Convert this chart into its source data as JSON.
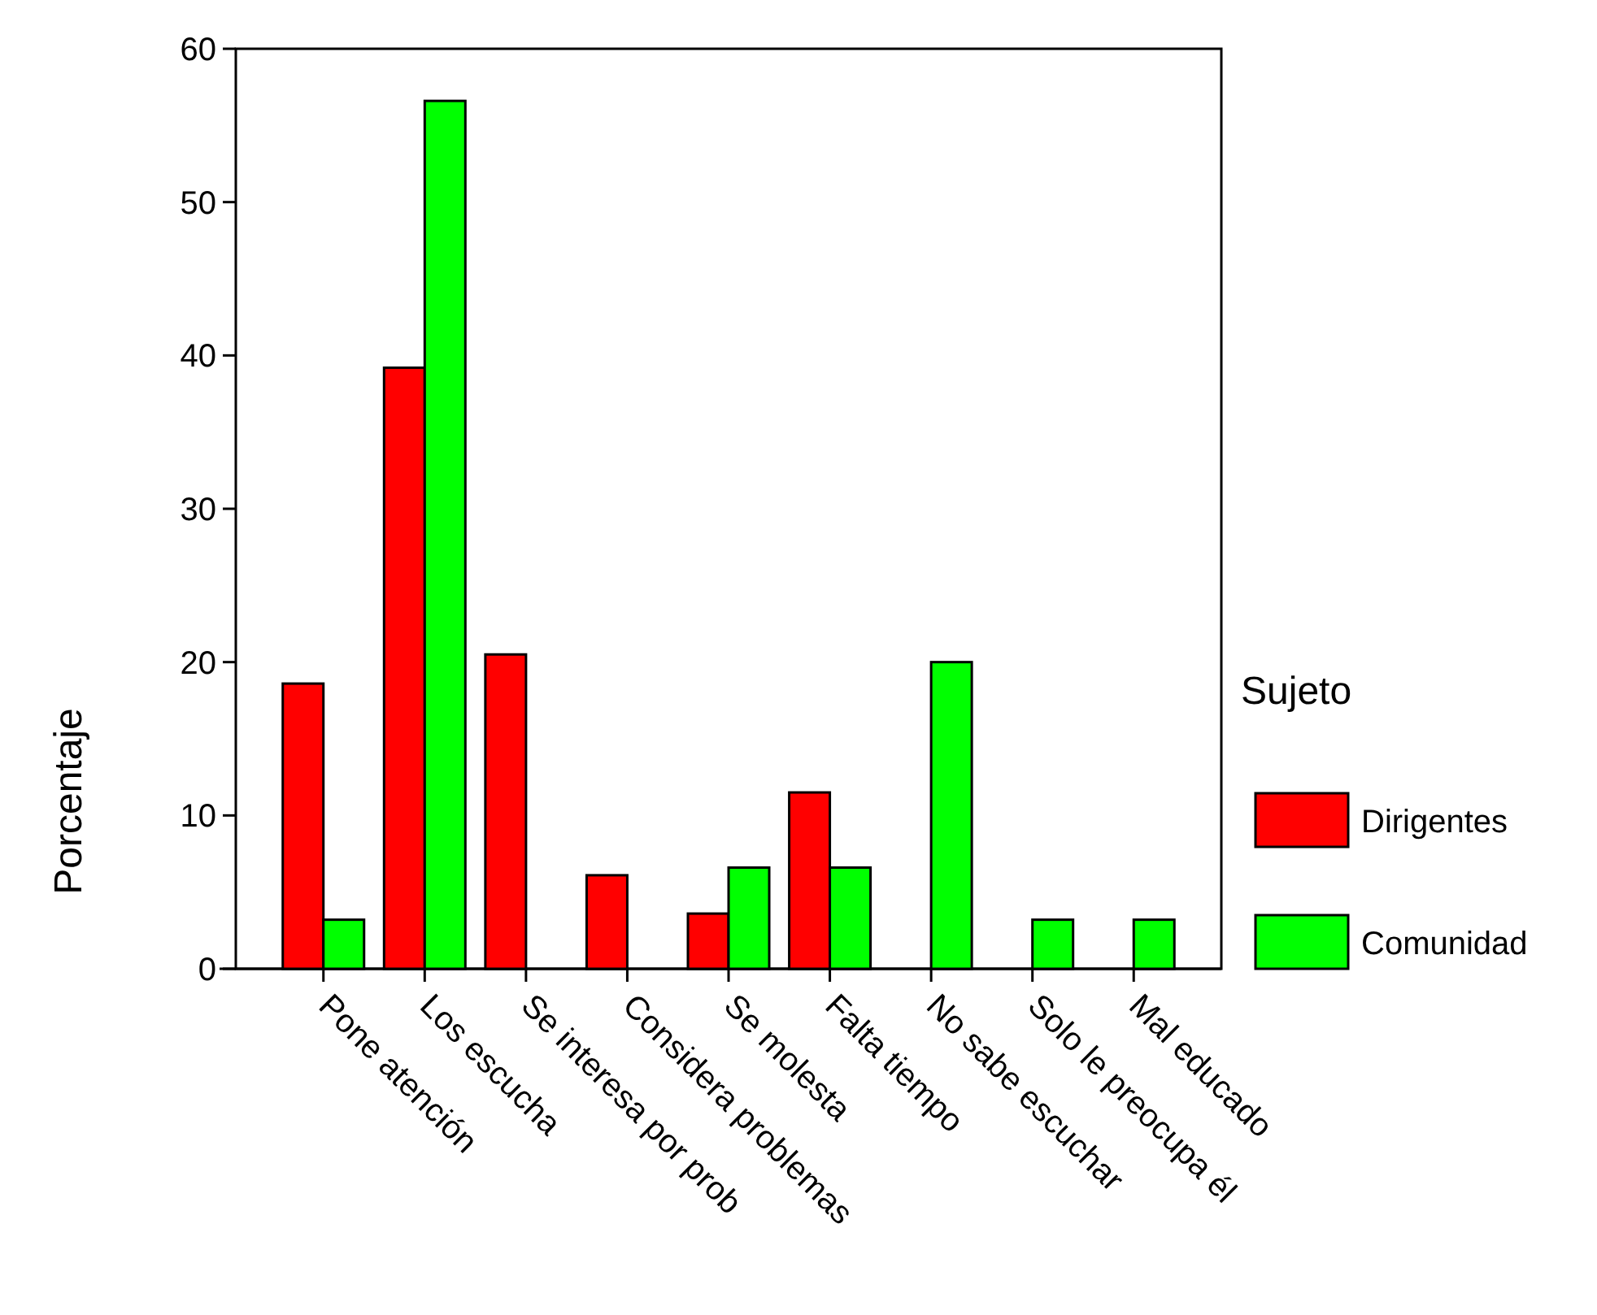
{
  "chart_data": {
    "type": "bar",
    "ylabel": "Porcentaje",
    "legend_title": "Sujeto",
    "legend": "right",
    "categories": [
      "Pone atención",
      "Los escucha",
      "Se interesa por prob",
      "Considera problemas",
      "Se molesta",
      "Falta tiempo",
      "No sabe escuchar",
      "Solo le preocupa él",
      "Mal educado"
    ],
    "series": [
      {
        "name": "Dirigentes",
        "color": "#ff0000",
        "values": [
          18.6,
          39.2,
          20.5,
          6.1,
          3.6,
          11.5,
          0,
          0,
          0
        ]
      },
      {
        "name": "Comunidad",
        "color": "#00ff00",
        "values": [
          3.2,
          56.6,
          0,
          0,
          6.6,
          6.6,
          20.0,
          3.2,
          3.2
        ]
      }
    ],
    "ylim": [
      0,
      60
    ],
    "yticks": [
      0,
      10,
      20,
      30,
      40,
      50,
      60
    ],
    "grid": false
  }
}
